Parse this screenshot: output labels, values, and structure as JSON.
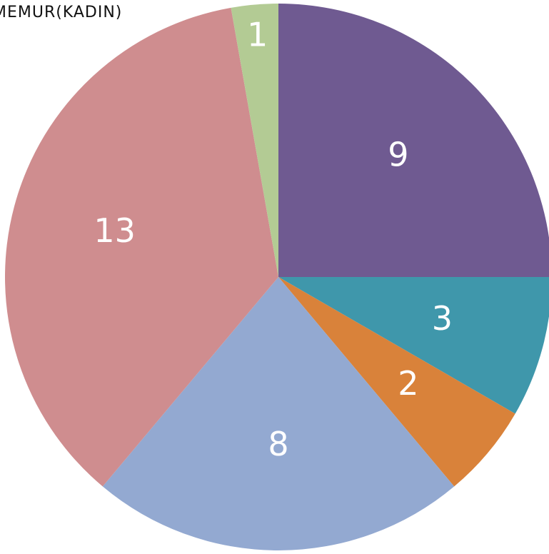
{
  "chart_data": {
    "type": "pie",
    "title": "MEMUR(KADIN)",
    "categories": [
      null,
      null,
      null,
      null,
      null,
      null
    ],
    "values": [
      9,
      3,
      2,
      8,
      13,
      1
    ],
    "colors": [
      "#6f5a91",
      "#3f97ab",
      "#d9823a",
      "#93a9d1",
      "#cf8d8f",
      "#b3cb94"
    ]
  }
}
